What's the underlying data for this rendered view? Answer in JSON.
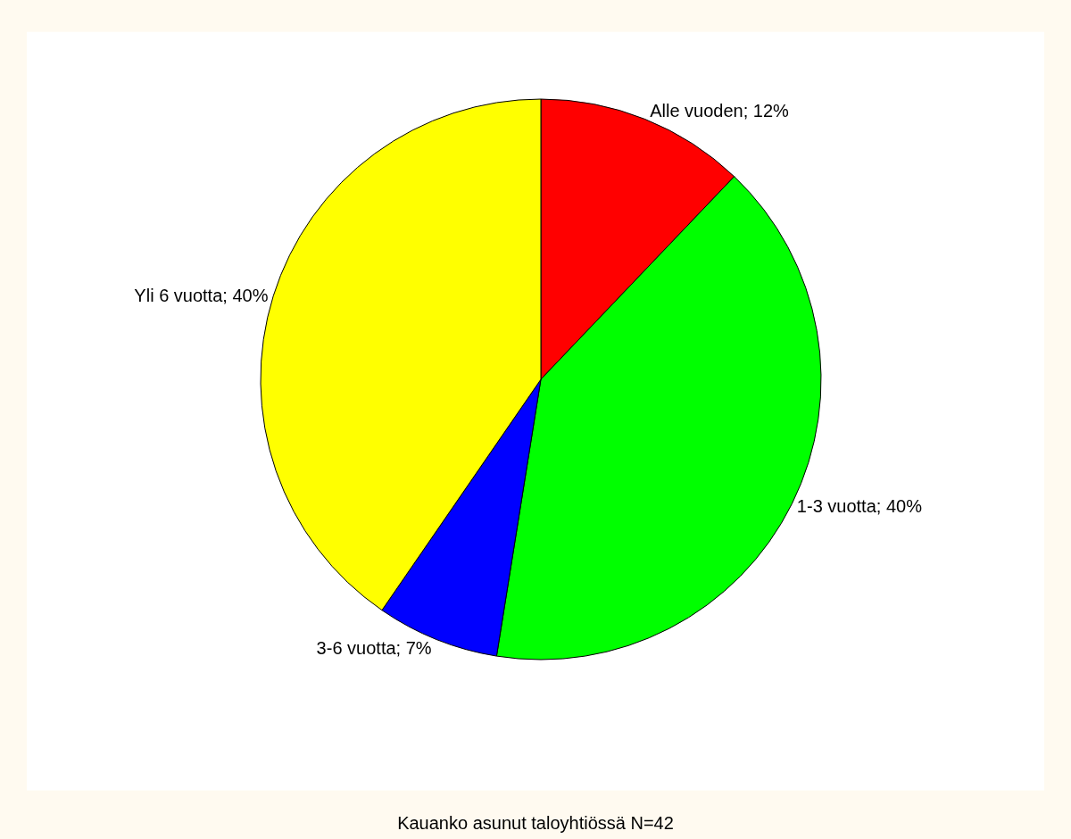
{
  "chart_data": {
    "type": "pie",
    "title": "Kauanko asunut taloyhtiössä N=42",
    "categories": [
      "Alle vuoden; 12%",
      "1-3 vuotta; 40%",
      "3-6 vuotta; 7%",
      "Yli 6 vuotta; 40%"
    ],
    "values": [
      12,
      40,
      7,
      40
    ],
    "colors": [
      "#ff0000",
      "#00ff00",
      "#0000ff",
      "#ffff00"
    ],
    "legend": false
  }
}
